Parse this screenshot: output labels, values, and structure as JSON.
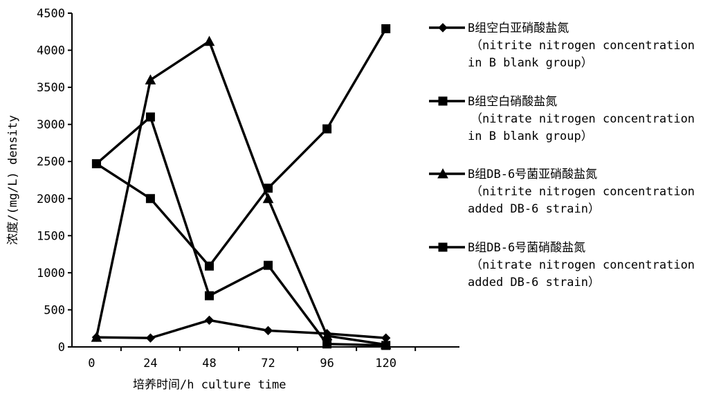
{
  "chart_data": {
    "type": "line",
    "xlabel": "培养时间/h culture time",
    "ylabel": "浓度/(mg/L) density",
    "x_ticks": [
      "0",
      "24",
      "48",
      "72",
      "96",
      "120"
    ],
    "y_ticks": [
      "0",
      "500",
      "1000",
      "1500",
      "2000",
      "2500",
      "3000",
      "3500",
      "4000",
      "4500"
    ],
    "xlim": [
      -8,
      150
    ],
    "ylim": [
      0,
      4500
    ],
    "grid": false,
    "legend_position": "right",
    "series": [
      {
        "name": "B组空白亚硝酸盐氮",
        "name_en": [
          "（nitrite nitrogen concentration",
          "in B blank group）"
        ],
        "marker": "diamond",
        "color": "#000000",
        "x": [
          2,
          24,
          48,
          72,
          96,
          120
        ],
        "y": [
          130,
          120,
          360,
          220,
          180,
          120
        ]
      },
      {
        "name": "B组空白硝酸盐氮",
        "name_en": [
          "（nitrate nitrogen concentration",
          "in B blank group）"
        ],
        "marker": "square",
        "color": "#000000",
        "x": [
          2,
          24,
          48,
          72,
          96,
          120
        ],
        "y": [
          2470,
          2000,
          1090,
          2140,
          2940,
          4290
        ]
      },
      {
        "name": "B组DB-6号菌亚硝酸盐氮",
        "name_en": [
          "（nitrite nitrogen concentration",
          "added DB-6 strain）"
        ],
        "marker": "triangle",
        "color": "#000000",
        "x": [
          2,
          24,
          48,
          72,
          96,
          120
        ],
        "y": [
          130,
          3600,
          4120,
          2000,
          150,
          30
        ]
      },
      {
        "name": "B组DB-6号菌硝酸盐氮",
        "name_en": [
          "（nitrate nitrogen concentration",
          "added DB-6 strain）"
        ],
        "marker": "square",
        "color": "#000000",
        "x": [
          2,
          24,
          48,
          72,
          96,
          120
        ],
        "y": [
          2470,
          3100,
          690,
          1100,
          40,
          20
        ]
      }
    ]
  }
}
